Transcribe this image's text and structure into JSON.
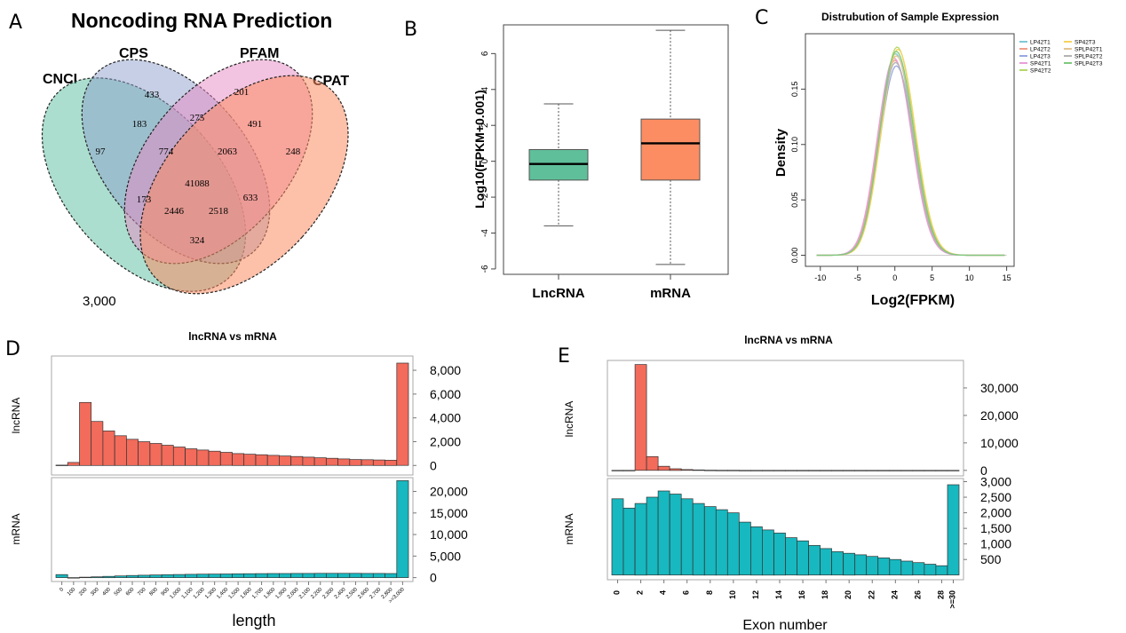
{
  "panels": {
    "A": "A",
    "B": "B",
    "C": "C",
    "D": "D",
    "E": "E"
  },
  "venn": {
    "title": "Noncoding RNA Prediction",
    "sets": [
      "CNCI",
      "CPS",
      "PFAM",
      "CPAT"
    ],
    "regions": {
      "cnci_only": "97",
      "cps_only": "433",
      "pfam_only": "201",
      "cpat_only": "248",
      "cnci_cps": "183",
      "cps_pfam": "275",
      "pfam_cpat": "491",
      "cnci_cps_pfam": "774",
      "cps_pfam_cpat": "2063",
      "all": "41088",
      "cnci_pfam": "173",
      "cps_cpat": "633",
      "cnci_pfam_cpat": "2446",
      "cnci_cps_cpat": "2518",
      "cnci_cpat": "324"
    },
    "footnote": "3,000",
    "colors": {
      "CNCI": "#66c2a5",
      "CPS": "#8da0cb",
      "PFAM": "#e78ac3",
      "CPAT": "#fc8d62"
    }
  },
  "chart_data": [
    {
      "id": "B",
      "type": "box",
      "ylabel": "Log10(FPKM+0.001)",
      "ylim": [
        -6.3,
        7.6
      ],
      "yticks": [
        -6,
        -4,
        -2,
        0,
        2,
        4,
        6
      ],
      "categories": [
        "LncRNA",
        "mRNA"
      ],
      "boxes": [
        {
          "name": "LncRNA",
          "min": -3.6,
          "q1": -1.05,
          "median": -0.15,
          "q3": 0.65,
          "max": 3.2,
          "color": "#5fbf9a"
        },
        {
          "name": "mRNA",
          "min": -5.75,
          "q1": -1.05,
          "median": 1.0,
          "q3": 2.35,
          "max": 7.3,
          "color": "#fc8d62"
        }
      ]
    },
    {
      "id": "C",
      "type": "line",
      "title": "Distrubution of Sample Expression",
      "xlabel": "Log2(FPKM)",
      "ylabel": "Density",
      "xlim": [
        -12,
        16
      ],
      "ylim": [
        -0.01,
        0.2
      ],
      "xticks": [
        -10,
        -5,
        0,
        5,
        10,
        15
      ],
      "yticks": [
        0.0,
        0.05,
        0.1,
        0.15
      ],
      "ytick_labels": [
        "0.00",
        "0.05",
        "0.10",
        "0.15"
      ],
      "series": [
        {
          "name": "LP42T1",
          "color": "#7fc9d6",
          "mean": 0.1,
          "peak": 0.182
        },
        {
          "name": "LP42T2",
          "color": "#f0a08c",
          "mean": 0.0,
          "peak": 0.176
        },
        {
          "name": "LP42T3",
          "color": "#9aa8e0",
          "mean": 0.2,
          "peak": 0.171
        },
        {
          "name": "SP42T1",
          "color": "#e8a0d8",
          "mean": -0.1,
          "peak": 0.178
        },
        {
          "name": "SP42T2",
          "color": "#b4d96a",
          "mean": 0.3,
          "peak": 0.188
        },
        {
          "name": "SP42T3",
          "color": "#f5d45e",
          "mean": 0.4,
          "peak": 0.186
        },
        {
          "name": "SPLP42T1",
          "color": "#e5c494",
          "mean": 0.2,
          "peak": 0.18
        },
        {
          "name": "SPLP42T2",
          "color": "#b3b3b3",
          "mean": 0.1,
          "peak": 0.174
        },
        {
          "name": "SPLP42T3",
          "color": "#7fc97f",
          "mean": 0.2,
          "peak": 0.184
        }
      ]
    },
    {
      "id": "D",
      "type": "bar",
      "title": "lncRNA vs mRNA",
      "xlabel": "length",
      "categories": [
        "0",
        "100",
        "200",
        "300",
        "400",
        "500",
        "600",
        "700",
        "800",
        "900",
        "1,000",
        "1,100",
        "1,200",
        "1,300",
        "1,400",
        "1,500",
        "1,600",
        "1,700",
        "1,800",
        "1,900",
        "2,000",
        "2,100",
        "2,200",
        "2,300",
        "2,400",
        "2,500",
        "2,600",
        "2,700",
        "2,800",
        ">=3,000"
      ],
      "facets": [
        {
          "name": "lncRNA",
          "color": "#f26b5b",
          "ylim": [
            -800,
            9200
          ],
          "yticks": [
            0,
            2000,
            4000,
            6000,
            8000
          ],
          "ytick_labels": [
            "0",
            "2,000",
            "4,000",
            "6,000",
            "8,000"
          ],
          "values": [
            30,
            250,
            5300,
            3700,
            2900,
            2500,
            2200,
            2000,
            1850,
            1700,
            1550,
            1400,
            1300,
            1200,
            1100,
            1000,
            950,
            900,
            850,
            800,
            750,
            700,
            650,
            600,
            550,
            500,
            480,
            460,
            440,
            8600
          ]
        },
        {
          "name": "mRNA",
          "color": "#17b8bf",
          "ylim": [
            -900,
            23200
          ],
          "yticks": [
            0,
            5000,
            10000,
            15000,
            20000
          ],
          "ytick_labels": [
            "0",
            "5,000",
            "10,000",
            "15,000",
            "20,000"
          ],
          "values": [
            700,
            0,
            100,
            200,
            300,
            400,
            500,
            560,
            620,
            680,
            720,
            760,
            800,
            830,
            860,
            890,
            910,
            930,
            950,
            960,
            970,
            980,
            990,
            1000,
            1000,
            990,
            980,
            970,
            960,
            22500
          ]
        }
      ]
    },
    {
      "id": "E",
      "type": "bar",
      "title": "lncRNA vs mRNA",
      "xlabel": "Exon number",
      "categories": [
        "0",
        "1",
        "2",
        "3",
        "4",
        "5",
        "6",
        "7",
        "8",
        "9",
        "10",
        "11",
        "12",
        "13",
        "14",
        "15",
        "16",
        "17",
        "18",
        "19",
        "20",
        "21",
        "22",
        "23",
        "24",
        "25",
        "26",
        "27",
        "28",
        ">=30"
      ],
      "tick_labels_shown": [
        "0",
        "2",
        "4",
        "6",
        "8",
        "10",
        "12",
        "14",
        "16",
        "18",
        "20",
        "22",
        "24",
        "26",
        "28",
        ">=30"
      ],
      "facets": [
        {
          "name": "lncRNA",
          "color": "#f26b5b",
          "ylim": [
            -2000,
            40000
          ],
          "yticks": [
            0,
            10000,
            20000,
            30000
          ],
          "ytick_labels": [
            "0",
            "10,000",
            "20,000",
            "30,000"
          ],
          "values": [
            0,
            0,
            38500,
            5000,
            1500,
            600,
            300,
            150,
            80,
            40,
            20,
            10,
            5,
            3,
            2,
            1,
            1,
            0,
            0,
            0,
            0,
            0,
            0,
            0,
            0,
            0,
            0,
            0,
            0,
            0
          ]
        },
        {
          "name": "mRNA",
          "color": "#17b8bf",
          "ylim": [
            -150,
            3100
          ],
          "yticks": [
            500,
            1000,
            1500,
            2000,
            2500,
            3000
          ],
          "ytick_labels": [
            "500",
            "1,000",
            "1,500",
            "2,000",
            "2,500",
            "3,000"
          ],
          "values": [
            2450,
            2150,
            2300,
            2500,
            2700,
            2600,
            2450,
            2300,
            2200,
            2100,
            2000,
            1700,
            1550,
            1450,
            1350,
            1200,
            1100,
            950,
            850,
            750,
            700,
            650,
            600,
            550,
            500,
            450,
            400,
            350,
            300,
            2900
          ]
        }
      ]
    }
  ]
}
